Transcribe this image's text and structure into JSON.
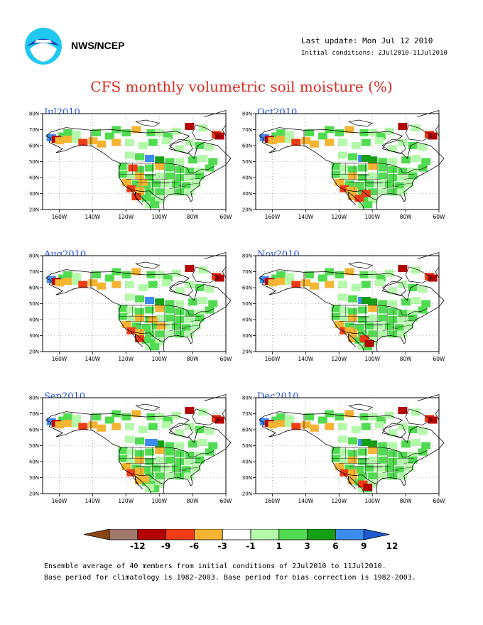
{
  "header": {
    "org": "NWS/NCEP",
    "last_update": "Last update: Mon Jul 12 2010",
    "initial_conditions": "Initial conditions: 2Jul2010-11Jul2010",
    "title": "CFS monthly volumetric soil moisture (%)"
  },
  "chart_data": {
    "type": "heatmap",
    "title": "CFS monthly volumetric soil moisture (%)",
    "panels": [
      "Jul2010",
      "Oct2010",
      "Aug2010",
      "Nov2010",
      "Sep2010",
      "Dec2010"
    ],
    "x_ticks": [
      "160W",
      "140W",
      "120W",
      "100W",
      "80W",
      "60W"
    ],
    "y_ticks": [
      "20N",
      "30N",
      "40N",
      "50N",
      "60N",
      "70N",
      "80N"
    ],
    "xlim": [
      -170,
      -60
    ],
    "ylim": [
      20,
      80
    ],
    "grid": true,
    "colorbar": {
      "ticks": [
        "-12",
        "-9",
        "-6",
        "-3",
        "-1",
        "1",
        "3",
        "6",
        "9",
        "12"
      ],
      "colors": [
        "#8b4513",
        "#a0786e",
        "#b40000",
        "#f03c14",
        "#f5b432",
        "#ffffff",
        "#b4faaa",
        "#50dc50",
        "#14a014",
        "#3c8cf0",
        "#1e5ad2"
      ]
    }
  },
  "footer": {
    "line1": "Ensemble average of 40 members from initial conditions of 2Jul2010 to 11Jul2010.",
    "line2": "Base period for climatology is 1982-2003. Base period for bias correction is 1982-2003."
  }
}
